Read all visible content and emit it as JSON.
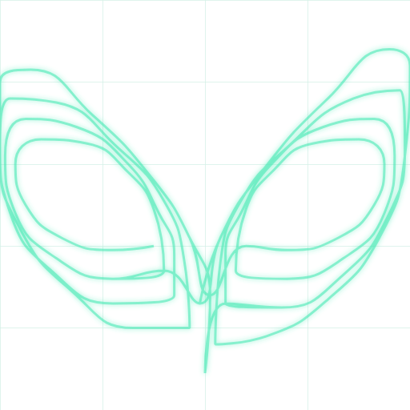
{
  "chart_data": {
    "type": "line",
    "x": [
      -5,
      -9,
      -14,
      -17.5,
      -18.5,
      -16,
      -11.5,
      -7.5,
      -5,
      -4,
      -9,
      -14.5,
      -18.5,
      -19.5,
      -17.5,
      -12.5,
      -7.5,
      -4.5,
      -3,
      -3,
      -9,
      -15,
      -19,
      -20,
      -19,
      -14.5,
      -8.5,
      -4,
      -2,
      -1.5,
      -7,
      -13,
      -18,
      -20,
      -20,
      -17,
      -11,
      -5,
      -1.5,
      0.5,
      4,
      8,
      13,
      16.5,
      17.5,
      15,
      10.5,
      6.5,
      4,
      3,
      8,
      13.5,
      17.5,
      18.5,
      16.5,
      11.5,
      6.5,
      3.5,
      2,
      2,
      7.5,
      13.5,
      18,
      19.5,
      19,
      14.5,
      8,
      3.5,
      1.5,
      1,
      6,
      12,
      17,
      19.5,
      20,
      18,
      12,
      5.5,
      1.5,
      -0.5,
      -4,
      -9,
      -14.5,
      -18.5,
      -19.5,
      -17.5,
      -12.5,
      -7.5,
      -4.5,
      -3,
      -3,
      -9,
      -15,
      -19,
      -20,
      -19,
      -14.5,
      -8.5,
      -4,
      -2,
      -1.5,
      -7,
      -13,
      -18,
      -20,
      -20,
      -17,
      -11,
      -5,
      -1.5,
      0.5,
      0,
      2,
      7.5,
      13.5,
      18,
      19.5,
      19,
      14.5,
      8,
      3.5,
      1.5,
      1,
      6,
      12,
      17,
      19.5,
      20,
      18,
      12,
      5.5,
      1.5,
      -0.5
    ],
    "values": [
      20,
      19.5,
      21,
      25,
      30,
      33,
      32.5,
      29,
      24.5,
      17,
      16,
      18.5,
      24,
      31,
      35.5,
      34.5,
      30,
      24,
      19,
      14,
      13,
      17,
      24,
      32,
      38,
      37.5,
      32,
      25.5,
      18,
      10,
      10,
      14.5,
      22,
      31,
      40,
      41.5,
      36,
      28,
      21,
      14,
      20,
      19.5,
      21,
      25,
      30,
      33,
      32.5,
      29,
      24.5,
      17,
      16,
      18.5,
      24,
      31,
      35.5,
      34.5,
      30,
      24,
      19,
      13,
      12.5,
      16.5,
      24,
      32,
      39,
      38,
      32,
      25.5,
      18,
      8,
      9,
      13.5,
      21,
      31,
      42,
      44,
      38,
      29,
      21,
      13,
      17,
      16,
      18.5,
      24,
      31,
      35.5,
      34.5,
      30,
      24,
      19,
      14,
      13,
      17,
      24,
      32,
      38,
      37.5,
      32,
      25.5,
      18,
      10,
      10,
      14.5,
      22,
      31,
      40,
      41.5,
      36,
      28,
      21,
      14,
      4.5,
      13,
      12.5,
      16.5,
      24,
      32,
      39,
      38,
      32,
      25.5,
      18,
      8,
      9,
      13.5,
      21,
      31,
      42,
      44,
      38,
      29,
      21,
      13
    ],
    "color": "#3ee8b0",
    "xlim": [
      -20,
      20
    ],
    "xticks": [
      -20,
      -10,
      0,
      10,
      20
    ],
    "ylim": [
      0,
      50
    ],
    "yticks": [
      0,
      10,
      20,
      30,
      40,
      50
    ],
    "grid": true,
    "tick_labels": false
  }
}
